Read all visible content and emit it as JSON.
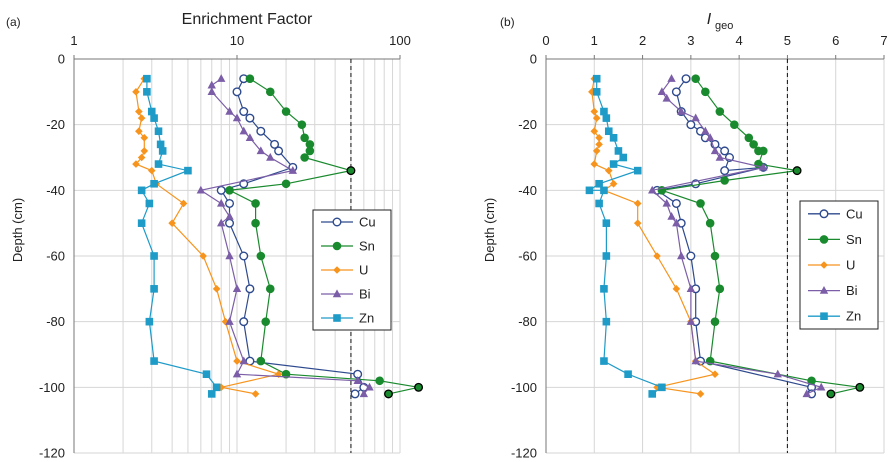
{
  "colors": {
    "Cu": "#2e4a8e",
    "Sn": "#1a8a2e",
    "U": "#f7941d",
    "Bi": "#7b5ea7",
    "Zn": "#1f9bc8"
  },
  "chart_data": [
    {
      "panel_label": "(a)",
      "type": "line",
      "title": "",
      "xlabel": "Enrichment Factor",
      "ylabel": "Depth (cm)",
      "x_scale": "log",
      "x_axis_position": "top",
      "xlim": [
        1,
        100
      ],
      "x_ticks": [
        1,
        10,
        100
      ],
      "x_tick_labels": [
        "1",
        "10",
        "100"
      ],
      "ylim": [
        -120,
        0
      ],
      "y_ticks": [
        0,
        -20,
        -40,
        -60,
        -80,
        -100,
        -120
      ],
      "y_tick_labels": [
        "0",
        "-20",
        "-40",
        "-60",
        "-80",
        "-100",
        "-120"
      ],
      "grid": true,
      "reference_line_x": 50,
      "legend_position": "right-middle",
      "series": [
        {
          "name": "Cu",
          "marker": "open-circle",
          "x": [
            11,
            10,
            11,
            12,
            14,
            17,
            18,
            22,
            11,
            8,
            9,
            9,
            11,
            12,
            11,
            12,
            55,
            60,
            53
          ],
          "y": [
            -6,
            -10,
            -16,
            -18,
            -22,
            -26,
            -28,
            -33,
            -38,
            -40,
            -44,
            -50,
            -60,
            -70,
            -80,
            -92,
            -96,
            -100,
            -102
          ]
        },
        {
          "name": "Sn",
          "marker": "filled-circle",
          "x": [
            12,
            16,
            20,
            25,
            26,
            28,
            28,
            26,
            50,
            20,
            9,
            13,
            13,
            14,
            16,
            15,
            14,
            20,
            75,
            130,
            85
          ],
          "y": [
            -6,
            -10,
            -16,
            -20,
            -24,
            -26,
            -28,
            -30,
            -34,
            -38,
            -40,
            -44,
            -50,
            -60,
            -70,
            -80,
            -92,
            -96,
            -98,
            -100,
            -102
          ]
        },
        {
          "name": "U",
          "marker": "diamond",
          "x": [
            2.7,
            2.4,
            2.5,
            2.6,
            2.5,
            2.7,
            2.7,
            2.6,
            2.4,
            3.0,
            3.2,
            4.7,
            4.0,
            6.2,
            7.5,
            8.5,
            10,
            18,
            8,
            13
          ],
          "y": [
            -6,
            -10,
            -16,
            -18,
            -22,
            -24,
            -28,
            -30,
            -32,
            -34,
            -38,
            -44,
            -50,
            -60,
            -70,
            -80,
            -92,
            -96,
            -100,
            -102
          ]
        },
        {
          "name": "Bi",
          "marker": "triangle",
          "x": [
            8,
            7,
            7,
            9,
            10,
            11,
            12,
            14,
            16,
            22,
            6,
            8,
            9,
            8,
            9,
            10,
            9,
            11,
            10,
            55,
            65,
            60
          ],
          "y": [
            -6,
            -8,
            -10,
            -16,
            -18,
            -22,
            -24,
            -28,
            -30,
            -34,
            -40,
            -44,
            -48,
            -50,
            -60,
            -70,
            -80,
            -92,
            -96,
            -98,
            -100,
            -102
          ]
        },
        {
          "name": "Zn",
          "marker": "filled-square",
          "x": [
            2.8,
            2.8,
            3.0,
            3.1,
            3.3,
            3.4,
            3.5,
            3.3,
            5.0,
            3.1,
            2.6,
            2.9,
            2.6,
            3.1,
            3.1,
            2.9,
            3.1,
            6.5,
            7.5,
            7
          ],
          "y": [
            -6,
            -10,
            -16,
            -18,
            -22,
            -26,
            -28,
            -32,
            -34,
            -38,
            -40,
            -44,
            -50,
            -60,
            -70,
            -80,
            -92,
            -96,
            -100,
            -102
          ]
        }
      ]
    },
    {
      "panel_label": "(b)",
      "type": "line",
      "title": "",
      "xlabel_main": "I",
      "xlabel_sub": "geo",
      "ylabel": "Depth (cm)",
      "x_scale": "linear",
      "x_axis_position": "top",
      "xlim": [
        0,
        7
      ],
      "x_ticks": [
        0,
        1,
        2,
        3,
        4,
        5,
        6,
        7
      ],
      "x_tick_labels": [
        "0",
        "1",
        "2",
        "3",
        "4",
        "5",
        "6",
        "7"
      ],
      "ylim": [
        -120,
        0
      ],
      "y_ticks": [
        0,
        -20,
        -40,
        -60,
        -80,
        -100,
        -120
      ],
      "y_tick_labels": [
        "0",
        "-20",
        "-40",
        "-60",
        "-80",
        "-100",
        "-120"
      ],
      "grid": true,
      "reference_line_x": 5,
      "legend_position": "right-middle",
      "series": [
        {
          "name": "Cu",
          "marker": "open-circle",
          "x": [
            2.9,
            2.7,
            2.8,
            3.0,
            3.2,
            3.3,
            3.5,
            3.7,
            3.8,
            3.7,
            4.5,
            3.1,
            2.3,
            2.7,
            2.8,
            3.0,
            3.1,
            3.1,
            3.2,
            5.5,
            5.5
          ],
          "y": [
            -6,
            -10,
            -16,
            -20,
            -22,
            -24,
            -26,
            -28,
            -30,
            -34,
            -33,
            -38,
            -40,
            -44,
            -50,
            -60,
            -70,
            -80,
            -92,
            -100,
            -102
          ]
        },
        {
          "name": "Sn",
          "marker": "filled-circle",
          "x": [
            3.1,
            3.3,
            3.6,
            3.9,
            4.2,
            4.3,
            4.4,
            4.5,
            4.4,
            5.2,
            3.7,
            2.4,
            3.2,
            3.4,
            3.5,
            3.6,
            3.5,
            3.4,
            5.5,
            6.5,
            5.9
          ],
          "y": [
            -6,
            -10,
            -16,
            -20,
            -24,
            -26,
            -28,
            -28,
            -32,
            -34,
            -37,
            -40,
            -44,
            -50,
            -60,
            -70,
            -80,
            -92,
            -98,
            -100,
            -102
          ]
        },
        {
          "name": "U",
          "marker": "diamond",
          "x": [
            1.0,
            0.95,
            1.0,
            1.05,
            1.0,
            1.1,
            1.1,
            1.05,
            1.0,
            1.3,
            1.4,
            1.2,
            1.9,
            1.9,
            2.3,
            2.7,
            3.0,
            3.1,
            3.5,
            2.3,
            3.2
          ],
          "y": [
            -6,
            -10,
            -16,
            -18,
            -22,
            -24,
            -26,
            -28,
            -32,
            -34,
            -38,
            -40,
            -44,
            -50,
            -60,
            -70,
            -80,
            -92,
            -96,
            -100,
            -102
          ]
        },
        {
          "name": "Bi",
          "marker": "triangle",
          "x": [
            2.6,
            2.4,
            2.5,
            2.8,
            3.1,
            3.3,
            3.4,
            3.5,
            3.6,
            4.5,
            2.2,
            2.5,
            2.6,
            2.7,
            2.8,
            3.0,
            3.0,
            3.1,
            4.8,
            5.7,
            5.4
          ],
          "y": [
            -6,
            -10,
            -12,
            -16,
            -18,
            -22,
            -24,
            -28,
            -30,
            -33,
            -40,
            -44,
            -48,
            -50,
            -60,
            -70,
            -80,
            -92,
            -96,
            -100,
            -102
          ]
        },
        {
          "name": "Zn",
          "marker": "filled-square",
          "x": [
            1.05,
            1.05,
            1.2,
            1.25,
            1.3,
            1.4,
            1.5,
            1.6,
            1.4,
            1.9,
            1.1,
            0.9,
            1.2,
            1.1,
            1.25,
            1.25,
            1.2,
            1.25,
            1.2,
            1.7,
            2.4,
            2.2
          ],
          "y": [
            -6,
            -10,
            -16,
            -18,
            -22,
            -24,
            -28,
            -30,
            -32,
            -34,
            -38,
            -40,
            -40,
            -44,
            -50,
            -60,
            -70,
            -80,
            -92,
            -96,
            -100,
            -102
          ]
        }
      ]
    }
  ]
}
